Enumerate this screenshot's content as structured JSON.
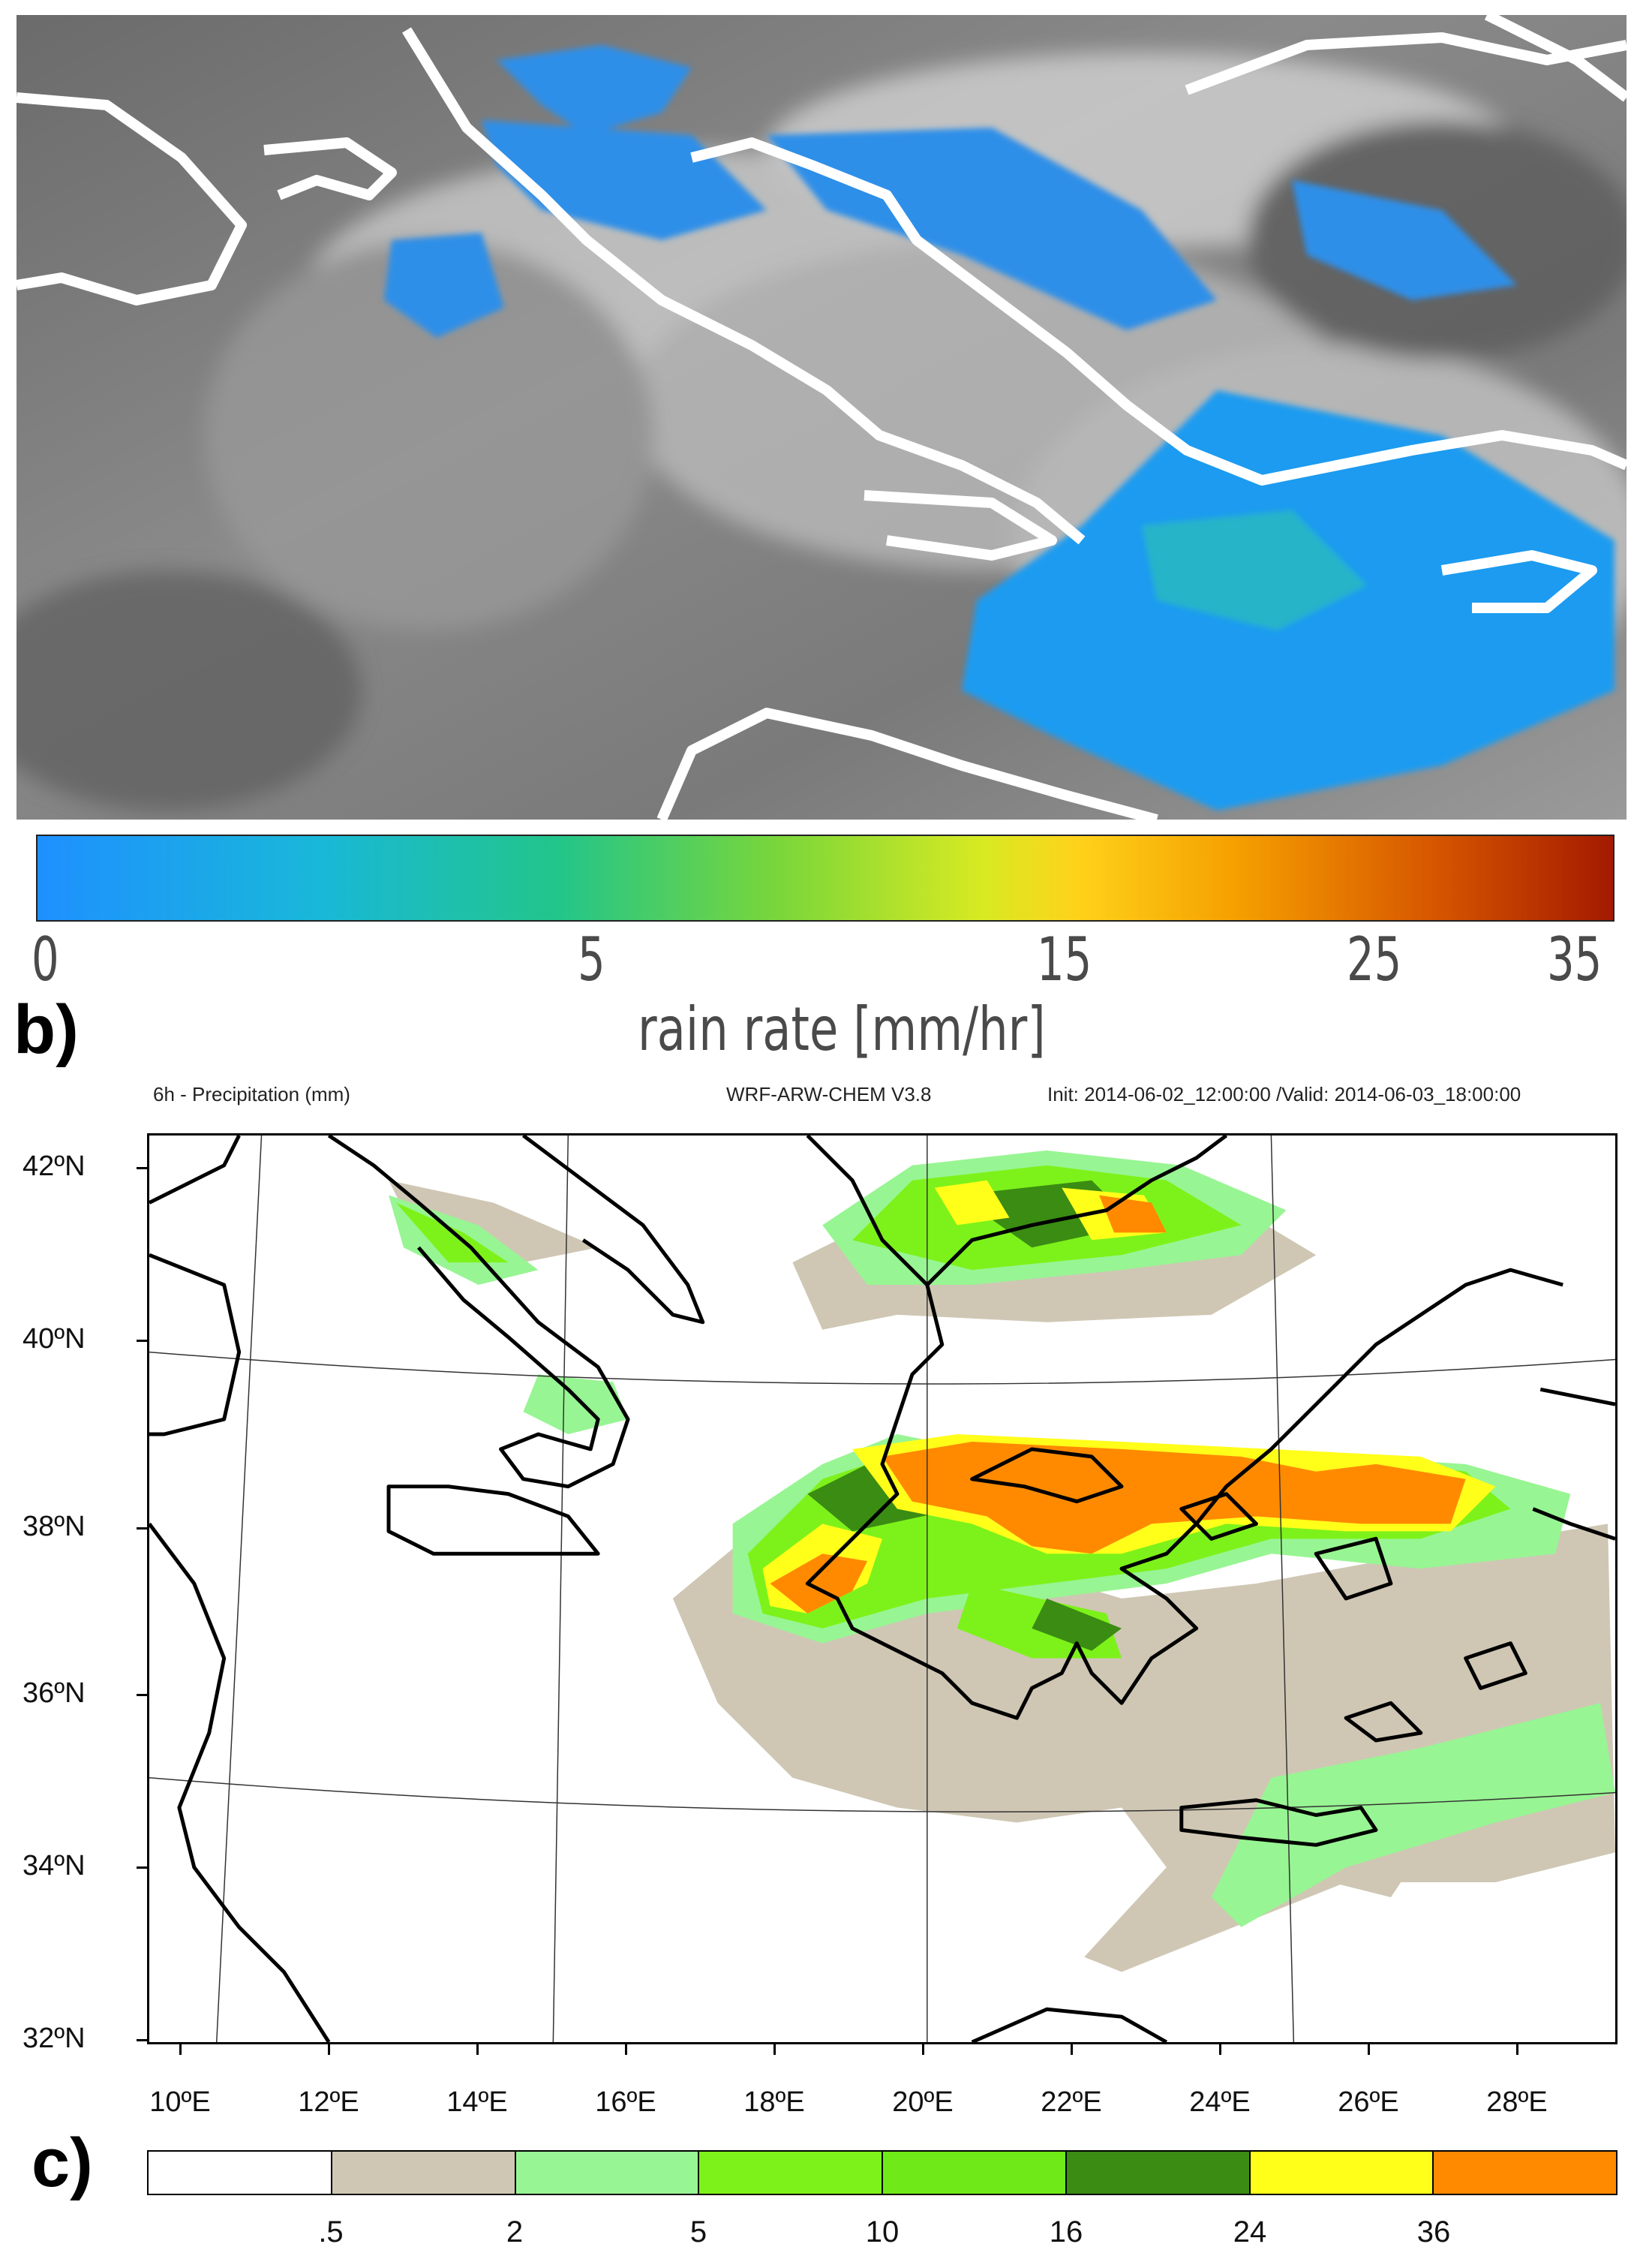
{
  "panel_b": {
    "colorbar": {
      "ticks": [
        "0",
        "5",
        "15",
        "25",
        "35"
      ],
      "label": "rain rate [mm/hr]",
      "colors": [
        "#1e90ff",
        "#22c58a",
        "#7ad63a",
        "#d8ea22",
        "#f5a000",
        "#a31a00"
      ]
    }
  },
  "letters": {
    "b": "b)",
    "c": "c)"
  },
  "panel_c": {
    "header": {
      "left": "6h - Precipitation (mm)",
      "center": "WRF-ARW-CHEM V3.8",
      "right": "Init: 2014-06-02_12:00:00 /Valid: 2014-06-03_18:00:00"
    },
    "lat_labels": [
      "42ºN",
      "40ºN",
      "38ºN",
      "36ºN",
      "34ºN",
      "32ºN"
    ],
    "lon_labels": [
      "10ºE",
      "12ºE",
      "14ºE",
      "16ºE",
      "18ºE",
      "20ºE",
      "22ºE",
      "24ºE",
      "26ºE",
      "28ºE"
    ],
    "legend": {
      "levels": [
        ".5",
        "2",
        "5",
        "10",
        "16",
        "24",
        "36"
      ],
      "colors": [
        "#ffffff",
        "#cfc7b4",
        "#98f593",
        "#7df21a",
        "#6fea18",
        "#3a8c12",
        "#ffff1a",
        "#ff8a00"
      ]
    }
  }
}
